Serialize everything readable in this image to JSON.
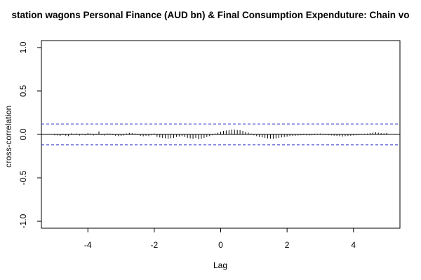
{
  "chart_data": {
    "type": "bar",
    "title": "station wagons Personal Finance (AUD bn) & Final Consumption Expenduture: Chain vo",
    "xlabel": "Lag",
    "ylabel": "cross-correlation",
    "xlim": [
      -5.4,
      5.4
    ],
    "ylim": [
      -1.08,
      1.08
    ],
    "xticks": [
      -4,
      -2,
      0,
      2,
      4
    ],
    "yticks": [
      -1.0,
      -0.5,
      0.0,
      0.5,
      1.0
    ],
    "xtick_labels": [
      "-4",
      "-2",
      "0",
      "2",
      "4"
    ],
    "ytick_labels": [
      "-1.0",
      "-0.5",
      "0.0",
      "0.5",
      "1.0"
    ],
    "confidence_bound": 0.12,
    "lag_step": 0.0833333,
    "lag_start": -5.0,
    "values": [
      -0.01,
      -0.012,
      -0.018,
      -0.008,
      -0.014,
      -0.02,
      0.012,
      -0.006,
      0.01,
      -0.012,
      0.008,
      -0.01,
      0.015,
      0.01,
      -0.012,
      0.008,
      0.035,
      -0.008,
      -0.012,
      0.012,
      0.01,
      -0.008,
      -0.015,
      -0.02,
      -0.018,
      -0.012,
      0.01,
      0.018,
      0.015,
      0.01,
      -0.008,
      -0.018,
      -0.022,
      -0.015,
      -0.02,
      -0.01,
      0.01,
      -0.028,
      -0.035,
      -0.04,
      -0.045,
      -0.05,
      -0.045,
      -0.04,
      -0.03,
      -0.025,
      -0.02,
      -0.03,
      -0.04,
      -0.045,
      -0.05,
      -0.04,
      -0.055,
      -0.048,
      -0.04,
      -0.03,
      -0.02,
      -0.01,
      0.01,
      0.02,
      0.03,
      0.04,
      0.045,
      0.05,
      0.055,
      0.055,
      0.05,
      0.048,
      0.04,
      0.03,
      0.02,
      0.01,
      -0.01,
      -0.02,
      -0.03,
      -0.035,
      -0.04,
      -0.045,
      -0.048,
      -0.05,
      -0.045,
      -0.04,
      -0.035,
      -0.03,
      -0.025,
      -0.02,
      -0.018,
      -0.015,
      -0.012,
      -0.01,
      -0.008,
      -0.01,
      -0.012,
      -0.01,
      -0.008,
      0.008,
      0.01,
      0.008,
      -0.008,
      -0.01,
      -0.012,
      -0.015,
      -0.018,
      -0.02,
      -0.025,
      -0.02,
      -0.018,
      -0.015,
      -0.012,
      -0.01,
      -0.008,
      -0.006,
      0.008,
      0.01,
      0.015,
      0.02,
      0.025,
      0.02,
      0.015,
      0.012,
      0.018
    ],
    "colors": {
      "bars": "#000000",
      "zero_line": "#000000",
      "bound": "#3333cc",
      "frame": "#000000"
    }
  }
}
